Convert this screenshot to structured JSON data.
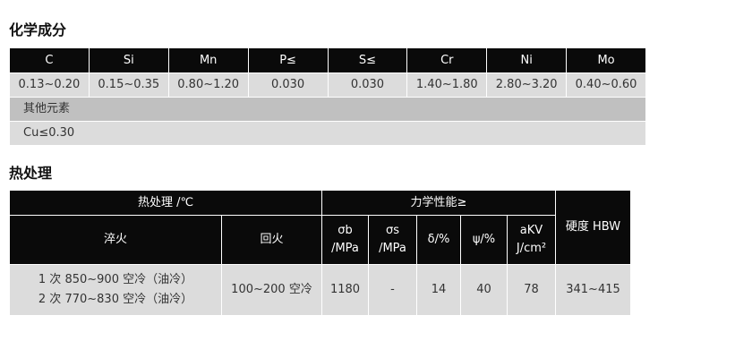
{
  "chem": {
    "title": "化学成分",
    "headers": [
      "C",
      "Si",
      "Mn",
      "P≤",
      "S≤",
      "Cr",
      "Ni",
      "Mo"
    ],
    "values": [
      "0.13~0.20",
      "0.15~0.35",
      "0.80~1.20",
      "0.030",
      "0.030",
      "1.40~1.80",
      "2.80~3.20",
      "0.40~0.60"
    ],
    "other_label": "其他元素",
    "other_value": "Cu≤0.30"
  },
  "heat": {
    "title": "热处理",
    "group_heat": "热处理 /℃",
    "group_mech": "力学性能≥",
    "hardness": "硬度 HBW",
    "cols": {
      "quench": "淬火",
      "temper": "回火",
      "sb1": "σb",
      "sb2": "/MPa",
      "ss1": "σs",
      "ss2": "/MPa",
      "delta": "δ/%",
      "psi": "ψ/%",
      "akv1": "aKV",
      "akv2": "J/cm²"
    },
    "row": {
      "quench1": "1 次 850~900 空冷（油冷）",
      "quench2": "2 次 770~830 空冷（油冷）",
      "temper": "100~200 空冷",
      "sb": "1180",
      "ss": "-",
      "delta": "14",
      "psi": "40",
      "akv": "78",
      "hbw": "341~415"
    }
  }
}
